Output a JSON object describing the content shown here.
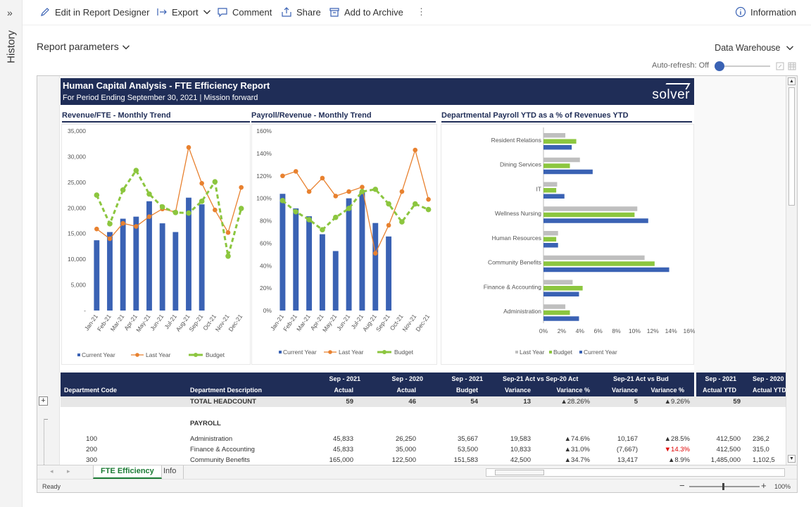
{
  "sidebar": {
    "title": "History",
    "toggle": "»"
  },
  "toolbar": {
    "edit": "Edit in Report Designer",
    "export": "Export",
    "comment": "Comment",
    "share": "Share",
    "archive": "Add to Archive",
    "more": "⋮",
    "info": "Information"
  },
  "report": {
    "parameters": "Report parameters",
    "source": "Data Warehouse",
    "autorefresh": "Auto-refresh: Off"
  },
  "banner": {
    "title": "Human Capital Analysis - FTE Efficiency Report",
    "subtitle": "For Period Ending September 30, 2021 | Mission forward",
    "logo": "solver"
  },
  "colors": {
    "navy": "#1f2d57",
    "blue": "#3a62b4",
    "orange": "#e8812f",
    "green": "#8cc63f",
    "gray": "#bfbfbf",
    "red": "#e00000"
  },
  "chart_data": [
    {
      "type": "bar",
      "title": "Revenue/FTE - Monthly Trend",
      "categories": [
        "Jan-21",
        "Feb-21",
        "Mar-21",
        "Apr-21",
        "May-21",
        "Jun-21",
        "Jul-21",
        "Aug-21",
        "Sep-21",
        "Oct-21",
        "Nov-21",
        "Dec-21"
      ],
      "yticks": [
        "35,000",
        "30,000",
        "25,000",
        "20,000",
        "15,000",
        "10,000",
        "5,000",
        "-"
      ],
      "ylim": [
        0,
        35000
      ],
      "series": [
        {
          "name": "Current Year",
          "type": "bar",
          "values": [
            13700,
            15300,
            17900,
            18300,
            21300,
            17000,
            15300,
            22000,
            20700,
            null,
            null,
            null
          ]
        },
        {
          "name": "Last Year",
          "type": "line",
          "values": [
            15900,
            14000,
            17000,
            16400,
            18300,
            19800,
            19200,
            31800,
            24800,
            19600,
            15200,
            24000
          ]
        },
        {
          "name": "Budget",
          "type": "line-dashed",
          "values": [
            22500,
            16900,
            23500,
            27300,
            22700,
            20200,
            19100,
            19000,
            21300,
            25100,
            10600,
            19900
          ]
        }
      ]
    },
    {
      "type": "bar",
      "title": "Payroll/Revenue - Monthly Trend",
      "categories": [
        "Jan-21",
        "Feb-21",
        "Mar-21",
        "Apr-21",
        "May-21",
        "Jun-21",
        "Jul-21",
        "Aug-21",
        "Sep-21",
        "Oct-21",
        "Nov-21",
        "Dec-21"
      ],
      "yticks": [
        "160%",
        "140%",
        "120%",
        "100%",
        "80%",
        "60%",
        "40%",
        "20%",
        "0%"
      ],
      "ylim": [
        0,
        160
      ],
      "series": [
        {
          "name": "Current Year",
          "type": "bar",
          "values": [
            104,
            91,
            84,
            68,
            53,
            100,
            106,
            78,
            66,
            null,
            null,
            null
          ]
        },
        {
          "name": "Last Year",
          "type": "line",
          "values": [
            120,
            124,
            106,
            118,
            102,
            106,
            110,
            51,
            76,
            106,
            143,
            99
          ]
        },
        {
          "name": "Budget",
          "type": "line-dashed",
          "values": [
            98,
            88,
            81,
            72,
            83,
            91,
            106,
            108,
            95,
            79,
            95,
            90
          ]
        }
      ]
    },
    {
      "type": "bar",
      "title": "Departmental Payroll YTD as a % of Revenues YTD",
      "orientation": "horizontal",
      "categories": [
        "Resident Relations",
        "Dining Services",
        "IT",
        "Wellness Nursing",
        "Human Resources",
        "Community Benefits",
        "Finance & Accounting",
        "Administration"
      ],
      "xticks": [
        "0%",
        "2%",
        "4%",
        "6%",
        "8%",
        "10%",
        "12%",
        "14%",
        "16%"
      ],
      "xlim": [
        0,
        16
      ],
      "series": [
        {
          "name": "Last Year",
          "values": [
            2.4,
            4.0,
            1.5,
            10.3,
            1.6,
            11.1,
            3.2,
            2.4
          ]
        },
        {
          "name": "Budget",
          "values": [
            3.6,
            2.9,
            1.4,
            10.0,
            1.4,
            12.2,
            4.3,
            2.9
          ]
        },
        {
          "name": "Current Year",
          "values": [
            3.1,
            5.4,
            2.3,
            11.5,
            1.6,
            13.8,
            3.9,
            3.9
          ]
        }
      ]
    }
  ],
  "table": {
    "headers": {
      "dept_code": "Department Code",
      "dept_desc": "Department Description",
      "c1a": "Sep - 2021",
      "c1b": "Actual",
      "c2a": "Sep - 2020",
      "c2b": "Actual",
      "c3a": "Sep - 2021",
      "c3b": "Budget",
      "g1": "Sep-21 Act vs Sep-20 Act",
      "g1a": "Variance",
      "g1b": "Variance %",
      "g2": "Sep-21 Act vs Bud",
      "g2a": "Variance",
      "g2b": "Variance %",
      "c4a": "Sep - 2021",
      "c4b": "Actual YTD",
      "c5a": "Sep - 2020",
      "c5b": "Actual YTD"
    },
    "total": {
      "label": "TOTAL HEADCOUNT",
      "a": "59",
      "b": "46",
      "c": "54",
      "v1": "13",
      "p1": "▲28.26%",
      "v2": "5",
      "p2": "▲9.26%",
      "ytd": "59"
    },
    "payroll_label": "PAYROLL",
    "rows": [
      {
        "code": "100",
        "desc": "Administration",
        "a": "45,833",
        "b": "26,250",
        "c": "35,667",
        "v1": "19,583",
        "p1": "▲74.6%",
        "v2": "10,167",
        "p2": "▲28.5%",
        "p2red": false,
        "ytd": "412,500",
        "ytd2": "236,2"
      },
      {
        "code": "200",
        "desc": "Finance & Accounting",
        "a": "45,833",
        "b": "35,000",
        "c": "53,500",
        "v1": "10,833",
        "p1": "▲31.0%",
        "v2": "(7,667)",
        "p2": "▼14.3%",
        "p2red": true,
        "ytd": "412,500",
        "ytd2": "315,0"
      },
      {
        "code": "300",
        "desc": "Community Benefits",
        "a": "165,000",
        "b": "122,500",
        "c": "151,583",
        "v1": "42,500",
        "p1": "▲34.7%",
        "v2": "13,417",
        "p2": "▲8.9%",
        "p2red": false,
        "ytd": "1,485,000",
        "ytd2": "1,102,5"
      }
    ]
  },
  "sheets": {
    "active": "FTE Efficiency",
    "other": "Info"
  },
  "status": {
    "ready": "Ready",
    "zoom": "100%",
    "minus": "−",
    "plus": "+"
  }
}
